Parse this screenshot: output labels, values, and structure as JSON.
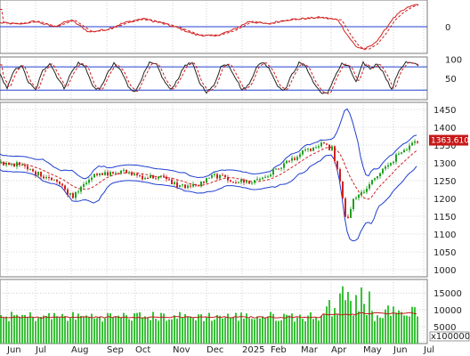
{
  "colors": {
    "up": "#20a020",
    "down": "#d02020",
    "band": "#1f3fd0",
    "price_line": "#d02020",
    "volume": "#39c239",
    "volume_ma": "#c01818",
    "grid": "#b0b0b0",
    "blue_line": "#2040d0"
  },
  "months": [
    "Jun",
    "Jul",
    "Aug",
    "Sep",
    "Oct",
    "Nov",
    "Dec",
    "2025",
    "Feb",
    "Mar",
    "Apr",
    "May",
    "Jun",
    "Jul"
  ],
  "panel1": {
    "y_ticks": [
      "0"
    ],
    "line_value": 0
  },
  "panel2": {
    "y_ticks": [
      "100",
      "50"
    ],
    "upper_line": 80,
    "lower_line": 20
  },
  "panel3": {
    "y_ticks": [
      "1450",
      "1400",
      "1350",
      "1300",
      "1250",
      "1200",
      "1150",
      "1100",
      "1050",
      "1000"
    ],
    "current_price_label": "1363.610",
    "ylim": [
      980,
      1470
    ]
  },
  "panel4": {
    "y_ticks": [
      "15000",
      "10000",
      "5000"
    ],
    "unit_label": "x100000",
    "ylim": [
      0,
      19000
    ]
  },
  "chart_data": [
    {
      "type": "line",
      "name": "oscillator",
      "anchors": [
        [
          0,
          6
        ],
        [
          20,
          4
        ],
        [
          40,
          8
        ],
        [
          60,
          0
        ],
        [
          80,
          10
        ],
        [
          100,
          -8
        ],
        [
          120,
          -4
        ],
        [
          140,
          6
        ],
        [
          160,
          12
        ],
        [
          180,
          6
        ],
        [
          200,
          -2
        ],
        [
          220,
          -12
        ],
        [
          240,
          -14
        ],
        [
          260,
          -6
        ],
        [
          280,
          8
        ],
        [
          300,
          4
        ],
        [
          320,
          10
        ],
        [
          340,
          12
        ],
        [
          360,
          14
        ],
        [
          380,
          10
        ],
        [
          390,
          -12
        ],
        [
          400,
          -30
        ],
        [
          410,
          -34
        ],
        [
          420,
          -26
        ],
        [
          430,
          -10
        ],
        [
          440,
          10
        ],
        [
          450,
          22
        ],
        [
          460,
          30
        ],
        [
          470,
          34
        ],
        [
          480,
          28
        ],
        [
          490,
          24
        ],
        [
          500,
          22
        ],
        [
          510,
          24
        ],
        [
          520,
          26
        ]
      ]
    },
    {
      "type": "line",
      "name": "stochastic",
      "ylim": [
        0,
        100
      ],
      "anchors": [
        [
          0,
          60
        ],
        [
          8,
          25
        ],
        [
          16,
          70
        ],
        [
          24,
          85
        ],
        [
          32,
          40
        ],
        [
          40,
          20
        ],
        [
          48,
          70
        ],
        [
          56,
          90
        ],
        [
          64,
          55
        ],
        [
          72,
          25
        ],
        [
          80,
          65
        ],
        [
          88,
          90
        ],
        [
          96,
          80
        ],
        [
          104,
          30
        ],
        [
          112,
          20
        ],
        [
          120,
          60
        ],
        [
          128,
          88
        ],
        [
          136,
          70
        ],
        [
          144,
          30
        ],
        [
          152,
          15
        ],
        [
          160,
          55
        ],
        [
          168,
          90
        ],
        [
          176,
          85
        ],
        [
          184,
          45
        ],
        [
          192,
          20
        ],
        [
          200,
          50
        ],
        [
          208,
          85
        ],
        [
          216,
          90
        ],
        [
          224,
          40
        ],
        [
          232,
          15
        ],
        [
          240,
          30
        ],
        [
          248,
          80
        ],
        [
          256,
          88
        ],
        [
          264,
          55
        ],
        [
          272,
          20
        ],
        [
          280,
          35
        ],
        [
          288,
          80
        ],
        [
          296,
          92
        ],
        [
          304,
          70
        ],
        [
          312,
          30
        ],
        [
          320,
          20
        ],
        [
          328,
          60
        ],
        [
          336,
          90
        ],
        [
          344,
          80
        ],
        [
          352,
          40
        ],
        [
          360,
          15
        ],
        [
          368,
          10
        ],
        [
          376,
          55
        ],
        [
          384,
          88
        ],
        [
          392,
          80
        ],
        [
          400,
          40
        ],
        [
          408,
          90
        ],
        [
          416,
          75
        ],
        [
          424,
          88
        ],
        [
          432,
          60
        ],
        [
          440,
          20
        ],
        [
          448,
          70
        ],
        [
          456,
          92
        ],
        [
          464,
          88
        ],
        [
          472,
          82
        ],
        [
          480,
          85
        ]
      ]
    },
    {
      "type": "candlestick",
      "name": "price",
      "anchors": [
        [
          0,
          1300
        ],
        [
          20,
          1295
        ],
        [
          40,
          1270
        ],
        [
          60,
          1255
        ],
        [
          70,
          1230
        ],
        [
          80,
          1205
        ],
        [
          90,
          1235
        ],
        [
          100,
          1260
        ],
        [
          120,
          1270
        ],
        [
          140,
          1275
        ],
        [
          160,
          1260
        ],
        [
          180,
          1260
        ],
        [
          200,
          1235
        ],
        [
          220,
          1235
        ],
        [
          240,
          1265
        ],
        [
          260,
          1250
        ],
        [
          280,
          1245
        ],
        [
          300,
          1265
        ],
        [
          320,
          1300
        ],
        [
          340,
          1330
        ],
        [
          360,
          1350
        ],
        [
          372,
          1340
        ],
        [
          380,
          1260
        ],
        [
          388,
          1130
        ],
        [
          395,
          1190
        ],
        [
          405,
          1215
        ],
        [
          415,
          1240
        ],
        [
          425,
          1270
        ],
        [
          435,
          1290
        ],
        [
          445,
          1320
        ],
        [
          455,
          1340
        ],
        [
          465,
          1355
        ],
        [
          470,
          1364
        ]
      ],
      "last_value": 1363.61
    },
    {
      "type": "bar",
      "name": "volume",
      "ylim": [
        0,
        19000
      ],
      "values_hint": "moderate 6000-9000 with spikes near Apr up to 18000"
    }
  ]
}
